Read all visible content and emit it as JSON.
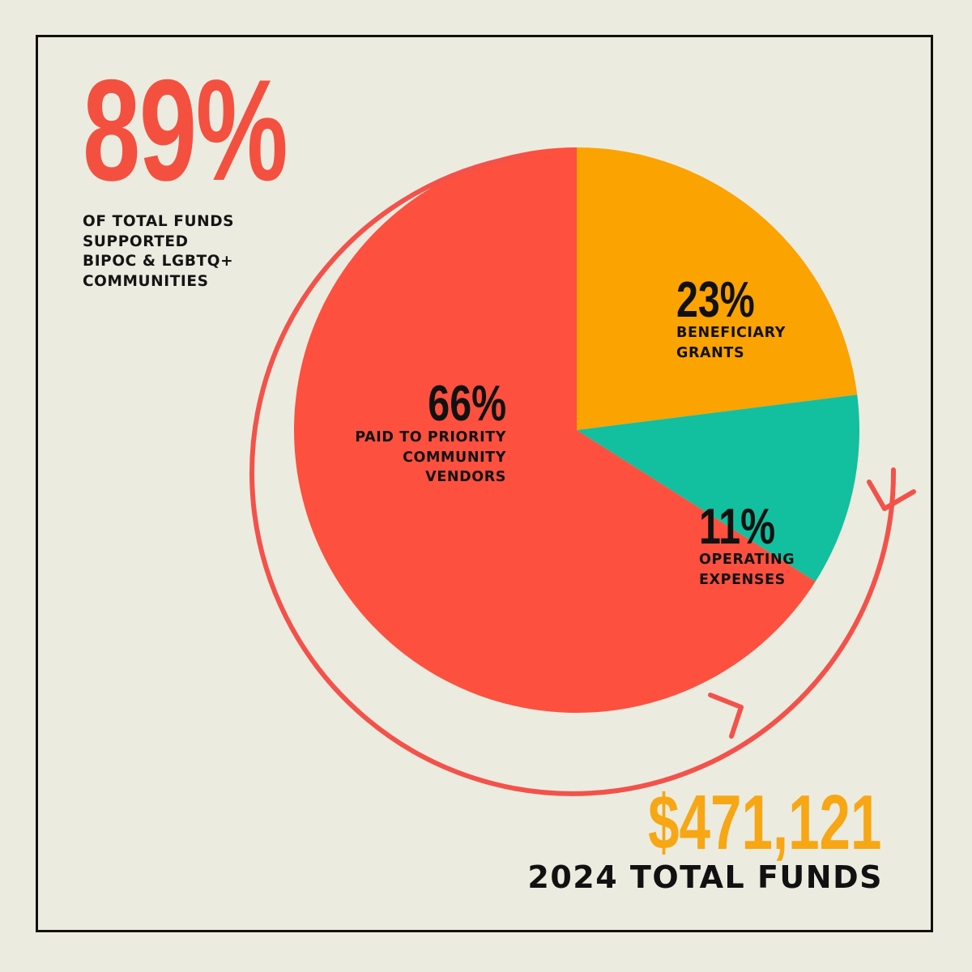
{
  "headline": {
    "value": "89%",
    "caption_lines": [
      "OF TOTAL FUNDS",
      "SUPPORTED",
      "BIPOC & LGBTQ+",
      "COMMUNITIES"
    ]
  },
  "chart_data": {
    "type": "pie",
    "title": "",
    "slices": [
      {
        "value": 23,
        "pct_label": "23%",
        "label_lines": [
          "BENEFICIARY",
          "GRANTS"
        ],
        "color": "#fba300"
      },
      {
        "value": 11,
        "pct_label": "11%",
        "label_lines": [
          "OPERATING",
          "EXPENSES"
        ],
        "color": "#12bf9f"
      },
      {
        "value": 66,
        "pct_label": "66%",
        "label_lines": [
          "PAID TO PRIORITY",
          "COMMUNITY",
          "VENDORS"
        ],
        "color": "#fd503f"
      }
    ],
    "start": "12 o'clock",
    "direction": "clockwise"
  },
  "total": {
    "value": "$471,121",
    "caption": "2024 TOTAL FUNDS"
  },
  "colors": {
    "background": "#ecebdf",
    "accent_red": "#f45040",
    "accent_orange": "#f7a714",
    "arrow": "#f3524a",
    "text": "#111111"
  }
}
